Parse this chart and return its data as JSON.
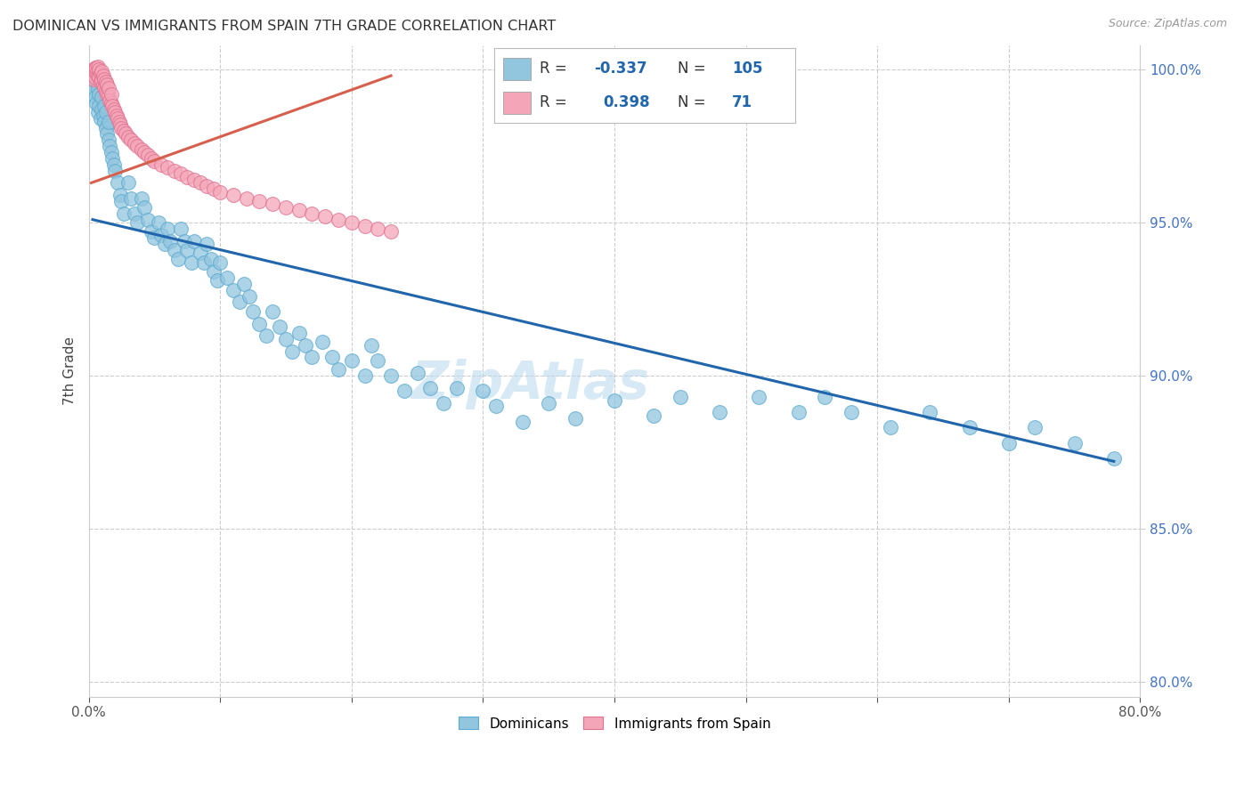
{
  "title": "DOMINICAN VS IMMIGRANTS FROM SPAIN 7TH GRADE CORRELATION CHART",
  "source": "Source: ZipAtlas.com",
  "ylabel": "7th Grade",
  "xlim": [
    0.0,
    0.8
  ],
  "ylim": [
    0.795,
    1.008
  ],
  "xticks": [
    0.0,
    0.1,
    0.2,
    0.3,
    0.4,
    0.5,
    0.6,
    0.7,
    0.8
  ],
  "xticklabels": [
    "0.0%",
    "",
    "",
    "",
    "",
    "",
    "",
    "",
    "80.0%"
  ],
  "yticks": [
    0.8,
    0.85,
    0.9,
    0.95,
    1.0
  ],
  "yticklabels": [
    "80.0%",
    "85.0%",
    "90.0%",
    "95.0%",
    "100.0%"
  ],
  "blue_color": "#92c5de",
  "pink_color": "#f4a6b8",
  "blue_line_color": "#2166ac",
  "pink_line_color": "#d6604d",
  "blue_edge_color": "#5baad0",
  "pink_edge_color": "#e07090",
  "dominicans_x": [
    0.003,
    0.004,
    0.005,
    0.005,
    0.006,
    0.007,
    0.007,
    0.008,
    0.008,
    0.009,
    0.01,
    0.01,
    0.011,
    0.012,
    0.012,
    0.013,
    0.013,
    0.014,
    0.015,
    0.015,
    0.016,
    0.017,
    0.018,
    0.019,
    0.02,
    0.022,
    0.024,
    0.025,
    0.027,
    0.03,
    0.032,
    0.035,
    0.037,
    0.04,
    0.042,
    0.045,
    0.048,
    0.05,
    0.053,
    0.055,
    0.058,
    0.06,
    0.062,
    0.065,
    0.068,
    0.07,
    0.073,
    0.075,
    0.078,
    0.08,
    0.085,
    0.088,
    0.09,
    0.093,
    0.095,
    0.098,
    0.1,
    0.105,
    0.11,
    0.115,
    0.118,
    0.122,
    0.125,
    0.13,
    0.135,
    0.14,
    0.145,
    0.15,
    0.155,
    0.16,
    0.165,
    0.17,
    0.178,
    0.185,
    0.19,
    0.2,
    0.21,
    0.215,
    0.22,
    0.23,
    0.24,
    0.25,
    0.26,
    0.27,
    0.28,
    0.3,
    0.31,
    0.33,
    0.35,
    0.37,
    0.4,
    0.43,
    0.45,
    0.48,
    0.51,
    0.54,
    0.56,
    0.58,
    0.61,
    0.64,
    0.67,
    0.7,
    0.72,
    0.75,
    0.78
  ],
  "dominicans_y": [
    0.995,
    0.993,
    0.991,
    0.997,
    0.989,
    0.986,
    0.994,
    0.988,
    0.992,
    0.984,
    0.987,
    0.991,
    0.985,
    0.983,
    0.988,
    0.981,
    0.986,
    0.979,
    0.977,
    0.983,
    0.975,
    0.973,
    0.971,
    0.969,
    0.967,
    0.963,
    0.959,
    0.957,
    0.953,
    0.963,
    0.958,
    0.953,
    0.95,
    0.958,
    0.955,
    0.951,
    0.947,
    0.945,
    0.95,
    0.946,
    0.943,
    0.948,
    0.944,
    0.941,
    0.938,
    0.948,
    0.944,
    0.941,
    0.937,
    0.944,
    0.94,
    0.937,
    0.943,
    0.938,
    0.934,
    0.931,
    0.937,
    0.932,
    0.928,
    0.924,
    0.93,
    0.926,
    0.921,
    0.917,
    0.913,
    0.921,
    0.916,
    0.912,
    0.908,
    0.914,
    0.91,
    0.906,
    0.911,
    0.906,
    0.902,
    0.905,
    0.9,
    0.91,
    0.905,
    0.9,
    0.895,
    0.901,
    0.896,
    0.891,
    0.896,
    0.895,
    0.89,
    0.885,
    0.891,
    0.886,
    0.892,
    0.887,
    0.893,
    0.888,
    0.893,
    0.888,
    0.893,
    0.888,
    0.883,
    0.888,
    0.883,
    0.878,
    0.883,
    0.878,
    0.873
  ],
  "spain_x": [
    0.002,
    0.003,
    0.004,
    0.004,
    0.005,
    0.005,
    0.006,
    0.006,
    0.007,
    0.007,
    0.008,
    0.008,
    0.009,
    0.009,
    0.01,
    0.01,
    0.011,
    0.011,
    0.012,
    0.012,
    0.013,
    0.013,
    0.014,
    0.014,
    0.015,
    0.015,
    0.016,
    0.017,
    0.017,
    0.018,
    0.019,
    0.02,
    0.021,
    0.022,
    0.023,
    0.024,
    0.025,
    0.027,
    0.028,
    0.03,
    0.032,
    0.035,
    0.037,
    0.04,
    0.042,
    0.045,
    0.048,
    0.05,
    0.055,
    0.06,
    0.065,
    0.07,
    0.075,
    0.08,
    0.085,
    0.09,
    0.095,
    0.1,
    0.11,
    0.12,
    0.13,
    0.14,
    0.15,
    0.16,
    0.17,
    0.18,
    0.19,
    0.2,
    0.21,
    0.22,
    0.23
  ],
  "spain_y": [
    0.9985,
    0.999,
    0.997,
    1.0,
    0.9975,
    1.0005,
    0.999,
    1.0005,
    0.998,
    1.001,
    0.9975,
    1.0,
    0.996,
    0.999,
    0.9965,
    0.9995,
    0.995,
    0.998,
    0.994,
    0.997,
    0.993,
    0.996,
    0.992,
    0.995,
    0.9915,
    0.994,
    0.99,
    0.989,
    0.992,
    0.988,
    0.987,
    0.986,
    0.985,
    0.984,
    0.983,
    0.982,
    0.981,
    0.98,
    0.979,
    0.978,
    0.977,
    0.976,
    0.975,
    0.974,
    0.973,
    0.972,
    0.971,
    0.97,
    0.969,
    0.968,
    0.967,
    0.966,
    0.965,
    0.964,
    0.963,
    0.962,
    0.961,
    0.96,
    0.959,
    0.958,
    0.957,
    0.956,
    0.955,
    0.954,
    0.953,
    0.952,
    0.951,
    0.95,
    0.949,
    0.948,
    0.947
  ],
  "blue_trend_x": [
    0.003,
    0.78
  ],
  "blue_trend_y": [
    0.951,
    0.872
  ],
  "pink_trend_x": [
    0.002,
    0.23
  ],
  "pink_trend_y": [
    0.963,
    0.998
  ]
}
